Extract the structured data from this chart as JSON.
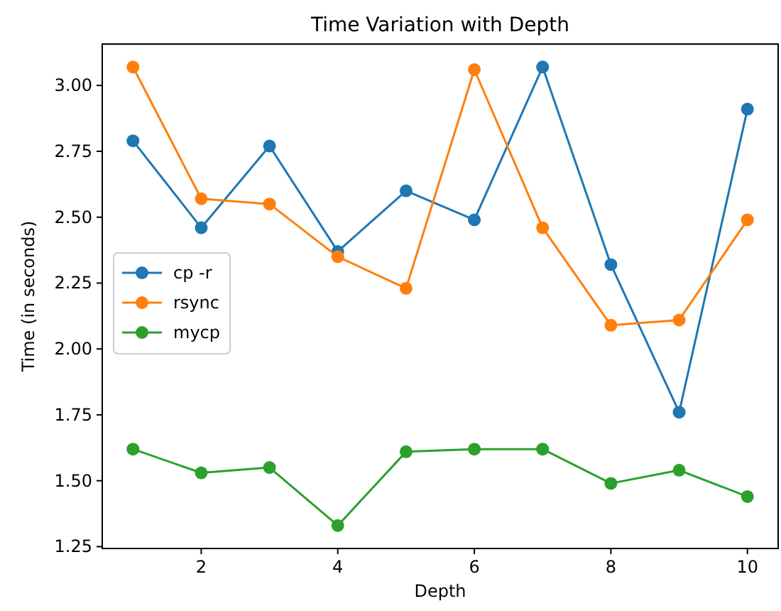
{
  "chart_data": {
    "type": "line",
    "title": "Time Variation with Depth",
    "xlabel": "Depth",
    "ylabel": "Time (in seconds)",
    "x": [
      1,
      2,
      3,
      4,
      5,
      6,
      7,
      8,
      9,
      10
    ],
    "series": [
      {
        "name": "cp -r",
        "color": "#1f77b4",
        "values": [
          2.79,
          2.46,
          2.77,
          2.37,
          2.6,
          2.49,
          3.07,
          2.32,
          1.76,
          2.91
        ]
      },
      {
        "name": "rsync",
        "color": "#ff7f0e",
        "values": [
          3.07,
          2.57,
          2.55,
          2.35,
          2.23,
          3.06,
          2.46,
          2.09,
          2.11,
          2.49
        ]
      },
      {
        "name": "mycp",
        "color": "#2ca02c",
        "values": [
          1.62,
          1.53,
          1.55,
          1.33,
          1.61,
          1.62,
          1.62,
          1.49,
          1.54,
          1.44
        ]
      }
    ],
    "xlim": [
      0.55,
      10.45
    ],
    "xticks": [
      2,
      4,
      6,
      8,
      10
    ],
    "ylim": [
      1.243,
      3.157
    ],
    "yticks": [
      {
        "value": 1.25,
        "label": "1.25"
      },
      {
        "value": 1.5,
        "label": "1.50"
      },
      {
        "value": 1.75,
        "label": "1.75"
      },
      {
        "value": 2,
        "label": "2.00"
      },
      {
        "value": 2.25,
        "label": "2.25"
      },
      {
        "value": 2.5,
        "label": "2.50"
      },
      {
        "value": 2.75,
        "label": "2.75"
      },
      {
        "value": 3,
        "label": "3.00"
      }
    ],
    "grid": false,
    "legend": "left",
    "marker": "circle",
    "line_style": "solid"
  }
}
